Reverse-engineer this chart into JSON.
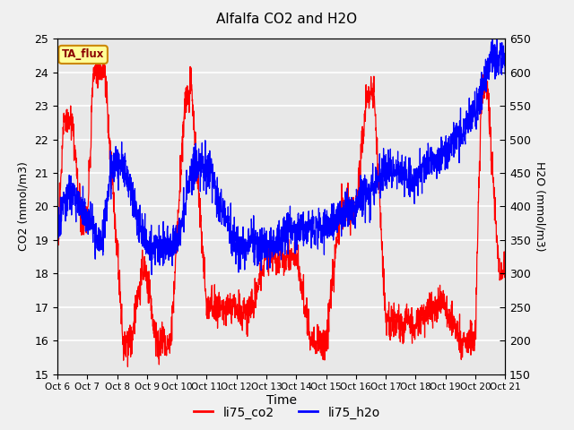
{
  "title": "Alfalfa CO2 and H2O",
  "xlabel": "Time",
  "ylabel_left": "CO2 (mmol/m3)",
  "ylabel_right": "H2O (mmol/m3)",
  "ylim_left": [
    15.0,
    25.0
  ],
  "ylim_right": [
    150,
    650
  ],
  "annotation_text": "TA_flux",
  "annotation_bg": "#FFFF99",
  "annotation_border": "#CC8800",
  "line_co2_color": "#FF0000",
  "line_h2o_color": "#0000FF",
  "legend_co2": "li75_co2",
  "legend_h2o": "li75_h2o",
  "xtick_labels": [
    "Oct 6",
    "Oct 7",
    "Oct 8",
    "Oct 9",
    "Oct 10",
    "Oct 11",
    "Oct 12",
    "Oct 13",
    "Oct 14",
    "Oct 15",
    "Oct 16",
    "Oct 17",
    "Oct 18",
    "Oct 19",
    "Oct 20",
    "Oct 21"
  ],
  "background_color": "#e8e8e8",
  "grid_color": "white",
  "fig_bg": "#f0f0f0",
  "linewidth": 0.9
}
